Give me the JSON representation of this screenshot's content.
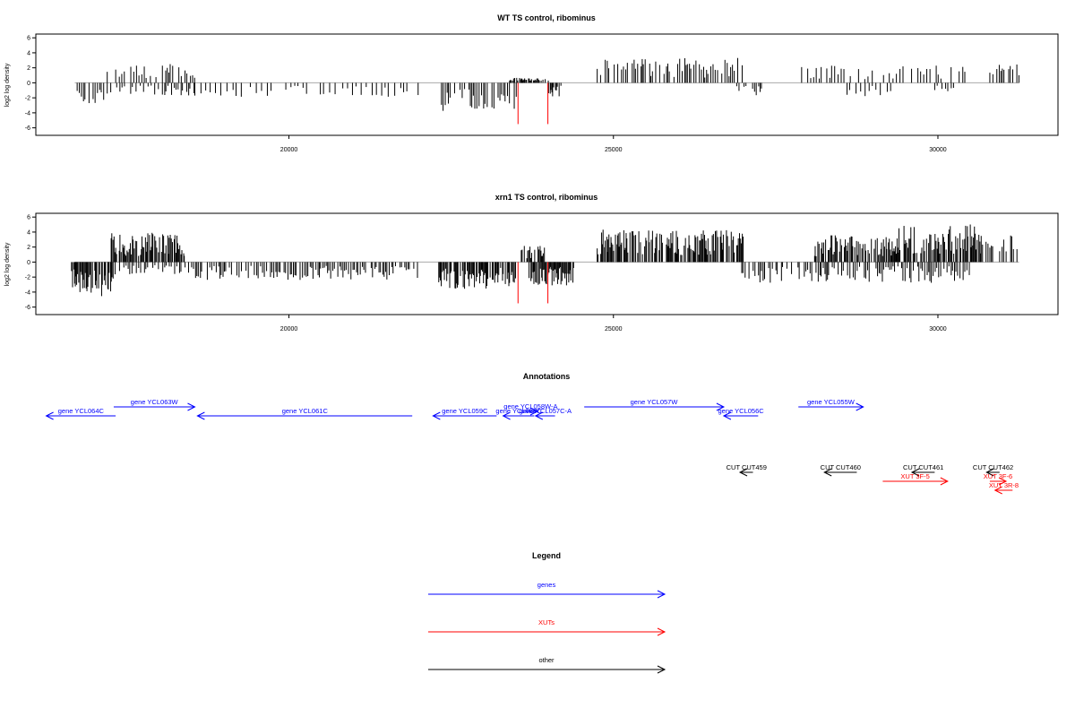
{
  "colors": {
    "genes": "#0000ff",
    "xuts": "#ff0000",
    "other": "#000000",
    "bars": "#000000",
    "highlight": "#ff0000",
    "baseline": "#aaaaaa"
  },
  "chart_data": [
    {
      "type": "bar",
      "title": "WT TS control, ribominus",
      "ylabel": "log2 log density",
      "xlim": [
        16100,
        31850
      ],
      "ylim": [
        -7,
        6.5
      ],
      "yticks": [
        -6,
        -4,
        -2,
        0,
        2,
        4,
        6
      ],
      "xticks": [
        20000,
        25000,
        30000
      ],
      "highlight_x": [
        23530,
        23990
      ],
      "segments": [
        {
          "x": [
            16700,
            17200
          ],
          "sign": -1,
          "amp": 2.4,
          "density": 2
        },
        {
          "x": [
            17200,
            18000
          ],
          "sign": 1,
          "amp": 2.0,
          "density": 3
        },
        {
          "x": [
            17200,
            18000
          ],
          "sign": -1,
          "amp": 1.3,
          "density": 3
        },
        {
          "x": [
            18050,
            18550
          ],
          "sign": 1,
          "amp": 2.1,
          "density": 2
        },
        {
          "x": [
            18050,
            18550
          ],
          "sign": -1,
          "amp": 1.4,
          "density": 2
        },
        {
          "x": [
            18550,
            22000
          ],
          "sign": -1,
          "amp": 1.6,
          "density": 5
        },
        {
          "x": [
            22350,
            23550
          ],
          "sign": -1,
          "amp": 3.2,
          "density": 2
        },
        {
          "x": [
            23400,
            23600
          ],
          "sign": 1,
          "amp": 0.6,
          "density": 1
        },
        {
          "x": [
            23600,
            24000
          ],
          "sign": 1,
          "amp": 0.5,
          "density": 1
        },
        {
          "x": [
            24000,
            24200
          ],
          "sign": -1,
          "amp": 1.5,
          "density": 1
        },
        {
          "x": [
            24750,
            27000
          ],
          "sign": 1,
          "amp": 2.8,
          "density": 2
        },
        {
          "x": [
            26900,
            27300
          ],
          "sign": -1,
          "amp": 1.6,
          "density": 2
        },
        {
          "x": [
            27900,
            30450
          ],
          "sign": 1,
          "amp": 2.0,
          "density": 3
        },
        {
          "x": [
            28600,
            29300
          ],
          "sign": -1,
          "amp": 1.5,
          "density": 4
        },
        {
          "x": [
            29900,
            30300
          ],
          "sign": -1,
          "amp": 1.0,
          "density": 4
        },
        {
          "x": [
            30800,
            31250
          ],
          "sign": 1,
          "amp": 2.2,
          "density": 2
        }
      ]
    },
    {
      "type": "bar",
      "title": "xrn1 TS control, ribominus",
      "ylabel": "log2 log density",
      "xlim": [
        16100,
        31850
      ],
      "ylim": [
        -7,
        6.5
      ],
      "yticks": [
        -6,
        -4,
        -2,
        0,
        2,
        4,
        6
      ],
      "xticks": [
        20000,
        25000,
        30000
      ],
      "highlight_x": [
        23530,
        23990
      ],
      "segments": [
        {
          "x": [
            16650,
            17300
          ],
          "sign": -1,
          "amp": 3.8,
          "density": 1
        },
        {
          "x": [
            17300,
            18500
          ],
          "sign": -1,
          "amp": 1.4,
          "density": 2
        },
        {
          "x": [
            17250,
            18400
          ],
          "sign": 1,
          "amp": 3.3,
          "density": 1
        },
        {
          "x": [
            18500,
            22000
          ],
          "sign": -1,
          "amp": 2.0,
          "density": 2
        },
        {
          "x": [
            22300,
            23500
          ],
          "sign": -1,
          "amp": 3.0,
          "density": 1
        },
        {
          "x": [
            23580,
            23950
          ],
          "sign": 1,
          "amp": 1.8,
          "density": 1
        },
        {
          "x": [
            23700,
            24400
          ],
          "sign": -1,
          "amp": 2.6,
          "density": 1
        },
        {
          "x": [
            24750,
            27000
          ],
          "sign": 1,
          "amp": 3.6,
          "density": 1
        },
        {
          "x": [
            26900,
            30500
          ],
          "sign": -1,
          "amp": 2.3,
          "density": 2
        },
        {
          "x": [
            28100,
            29400
          ],
          "sign": 1,
          "amp": 3.0,
          "density": 1
        },
        {
          "x": [
            29400,
            30700
          ],
          "sign": 1,
          "amp": 4.2,
          "density": 1
        },
        {
          "x": [
            30700,
            31250
          ],
          "sign": 1,
          "amp": 3.0,
          "density": 2
        }
      ]
    }
  ],
  "annotations": {
    "title": "Annotations",
    "xlim": [
      16100,
      31850
    ],
    "arrows": [
      {
        "label": "gene YCL064C",
        "dir": "left",
        "color": "genes",
        "row": 1,
        "x": [
          16260,
          17330
        ]
      },
      {
        "label": "gene YCL063W",
        "dir": "right",
        "color": "genes",
        "row": 0,
        "x": [
          17300,
          18550
        ]
      },
      {
        "label": "gene YCL061C",
        "dir": "left",
        "color": "genes",
        "row": 1,
        "x": [
          18590,
          21900
        ]
      },
      {
        "label": "gene YCL059C",
        "dir": "left",
        "color": "genes",
        "row": 1,
        "x": [
          22220,
          23200
        ]
      },
      {
        "label": "gene YCL058W-A",
        "dir": "right",
        "color": "genes",
        "row": 0.55,
        "x": [
          23620,
          23830
        ]
      },
      {
        "label": "gene YCL058C",
        "dir": "left",
        "color": "genes",
        "row": 1,
        "x": [
          23300,
          23780
        ]
      },
      {
        "label": "gene YCL057C-A",
        "dir": "left",
        "color": "genes",
        "row": 1,
        "x": [
          23800,
          24100
        ]
      },
      {
        "label": "gene YCL057W",
        "dir": "right",
        "color": "genes",
        "row": 0,
        "x": [
          24550,
          26700
        ]
      },
      {
        "label": "gene YCL056C",
        "dir": "left",
        "color": "genes",
        "row": 1,
        "x": [
          26700,
          27230
        ]
      },
      {
        "label": "gene YCL055W",
        "dir": "right",
        "color": "genes",
        "row": 0,
        "x": [
          27850,
          28850
        ]
      },
      {
        "label": "CUT CUT459",
        "dir": "left",
        "color": "other",
        "row": 0,
        "x": [
          26950,
          27150
        ]
      },
      {
        "label": "CUT CUT460",
        "dir": "left",
        "color": "other",
        "row": 0,
        "x": [
          28250,
          28750
        ]
      },
      {
        "label": "CUT CUT461",
        "dir": "left",
        "color": "other",
        "row": 0,
        "x": [
          29600,
          29950
        ]
      },
      {
        "label": "CUT CUT462",
        "dir": "left",
        "color": "other",
        "row": 0,
        "x": [
          30750,
          30950
        ]
      },
      {
        "label": "XUT 3F-5",
        "dir": "right",
        "color": "xuts",
        "row": 1,
        "x": [
          29150,
          30150
        ]
      },
      {
        "label": "XUT 3F-6",
        "dir": "right",
        "color": "xuts",
        "row": 1,
        "x": [
          30800,
          31050
        ]
      },
      {
        "label": "XUT 3R-8",
        "dir": "left",
        "color": "xuts",
        "row": 2,
        "x": [
          30880,
          31150
        ]
      }
    ]
  },
  "legend": {
    "title": "Legend",
    "items": [
      {
        "label": "genes",
        "color": "genes"
      },
      {
        "label": "XUTs",
        "color": "xuts"
      },
      {
        "label": "other",
        "color": "other"
      }
    ]
  }
}
